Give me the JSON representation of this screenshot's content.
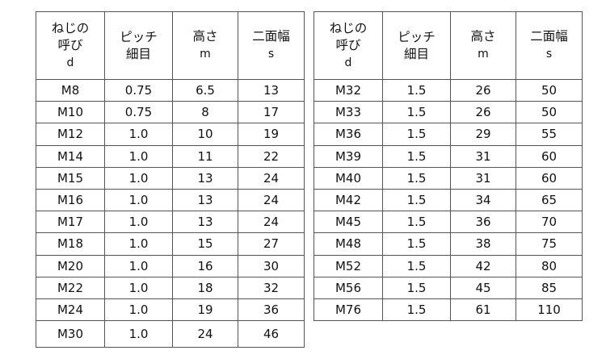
{
  "headers": {
    "size": {
      "l1": "ねじの",
      "l2": "呼び",
      "sym": "d"
    },
    "pitch": {
      "l1": "ピッチ",
      "l2": "細目",
      "sym": ""
    },
    "height": {
      "l1": "高さ",
      "l2": "",
      "sym": "m"
    },
    "width": {
      "l1": "二面幅",
      "l2": "",
      "sym": "s"
    }
  },
  "left_rows": [
    [
      "M8",
      "0.75",
      "6.5",
      "13"
    ],
    [
      "M10",
      "0.75",
      "8",
      "17"
    ],
    [
      "M12",
      "1.0",
      "10",
      "19"
    ],
    [
      "M14",
      "1.0",
      "11",
      "22"
    ],
    [
      "M15",
      "1.0",
      "13",
      "24"
    ],
    [
      "M16",
      "1.0",
      "13",
      "24"
    ],
    [
      "M17",
      "1.0",
      "13",
      "24"
    ],
    [
      "M18",
      "1.0",
      "15",
      "27"
    ],
    [
      "M20",
      "1.0",
      "16",
      "30"
    ],
    [
      "M22",
      "1.0",
      "18",
      "32"
    ],
    [
      "M24",
      "1.0",
      "19",
      "36"
    ],
    [
      "M30",
      "1.0",
      "24",
      "46"
    ]
  ],
  "right_rows": [
    [
      "M32",
      "1.5",
      "26",
      "50"
    ],
    [
      "M33",
      "1.5",
      "26",
      "50"
    ],
    [
      "M36",
      "1.5",
      "29",
      "55"
    ],
    [
      "M39",
      "1.5",
      "31",
      "60"
    ],
    [
      "M40",
      "1.5",
      "31",
      "60"
    ],
    [
      "M42",
      "1.5",
      "34",
      "65"
    ],
    [
      "M45",
      "1.5",
      "36",
      "70"
    ],
    [
      "M48",
      "1.5",
      "38",
      "75"
    ],
    [
      "M52",
      "1.5",
      "42",
      "80"
    ],
    [
      "M56",
      "1.5",
      "45",
      "85"
    ],
    [
      "M76",
      "1.5",
      "61",
      "110"
    ]
  ]
}
